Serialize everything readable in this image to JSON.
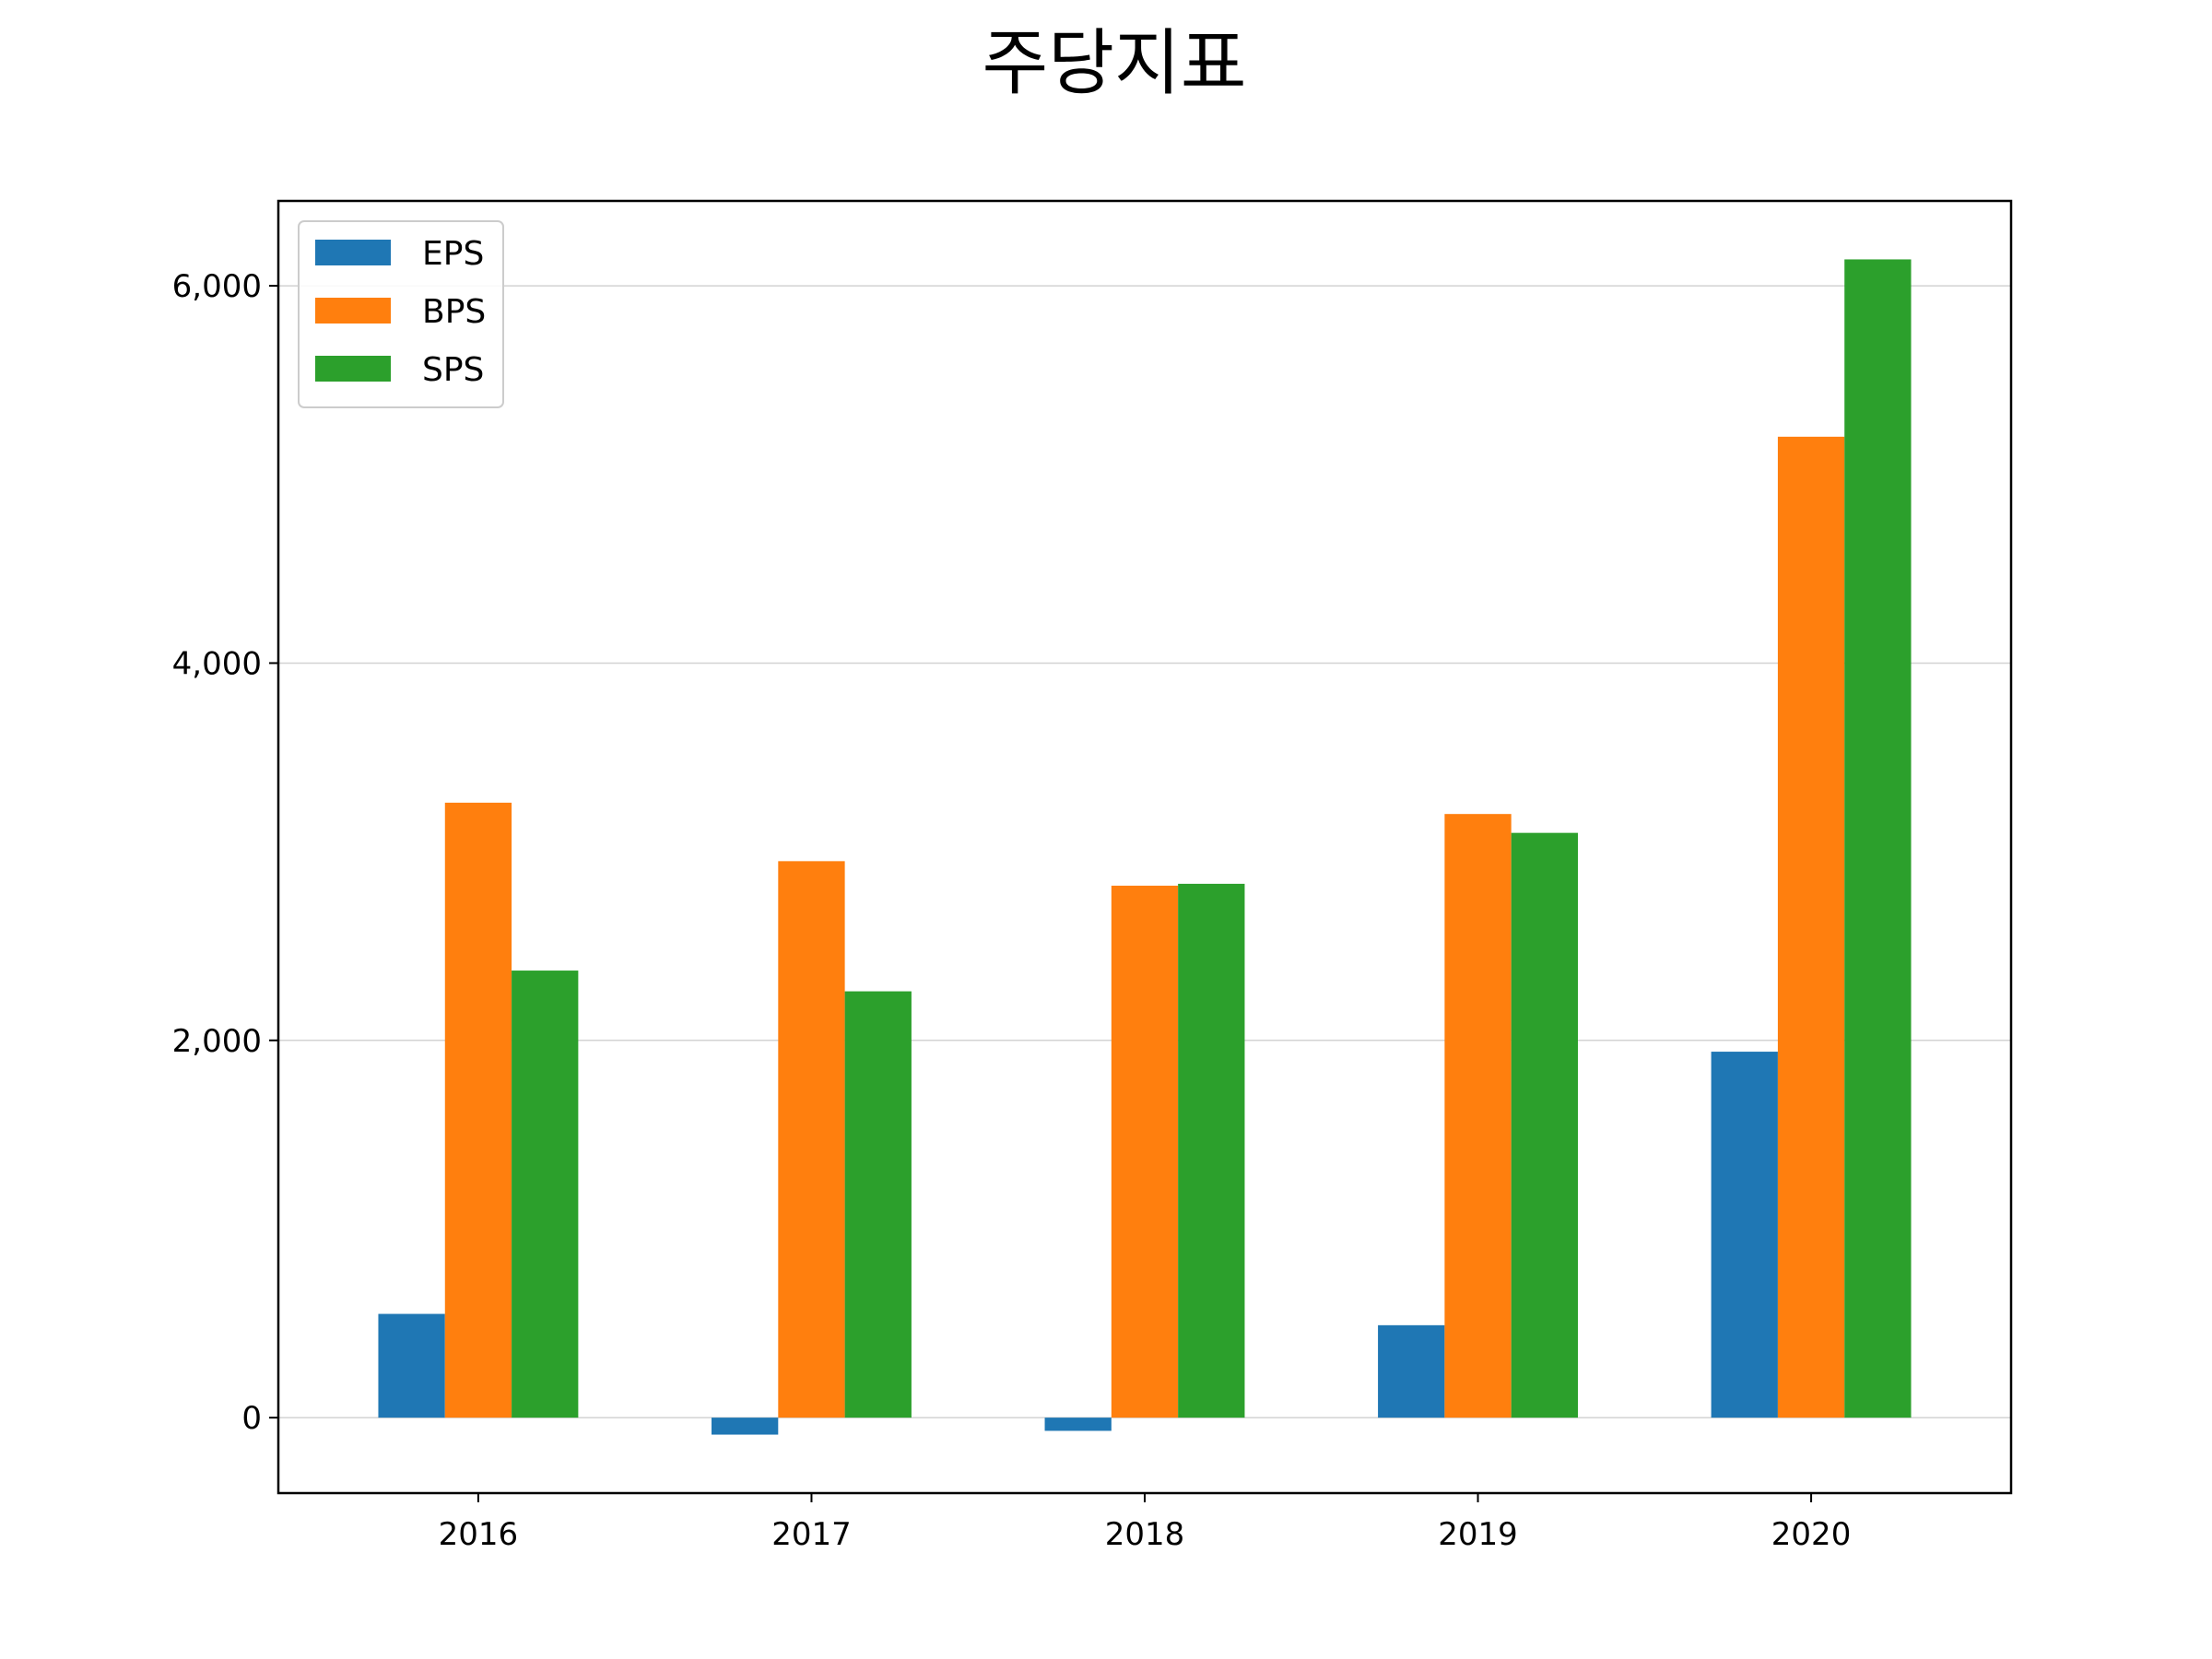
{
  "chart_data": {
    "type": "bar",
    "title": "주당지표",
    "xlabel": "",
    "ylabel": "",
    "categories": [
      "2016",
      "2017",
      "2018",
      "2019",
      "2020"
    ],
    "series": [
      {
        "name": "EPS",
        "color": "#1f77b4",
        "values": [
          550,
          -90,
          -70,
          490,
          1940
        ]
      },
      {
        "name": "BPS",
        "color": "#ff7f0e",
        "values": [
          3260,
          2950,
          2820,
          3200,
          5200
        ]
      },
      {
        "name": "SPS",
        "color": "#2ca02c",
        "values": [
          2370,
          2260,
          2830,
          3100,
          6140
        ]
      }
    ],
    "ylim": [
      -400,
      6450
    ],
    "yticks": [
      0,
      2000,
      4000,
      6000
    ],
    "ytick_labels": [
      "0",
      "2,000",
      "4,000",
      "6,000"
    ],
    "grid": "horizontal",
    "legend_position": "top-left"
  }
}
